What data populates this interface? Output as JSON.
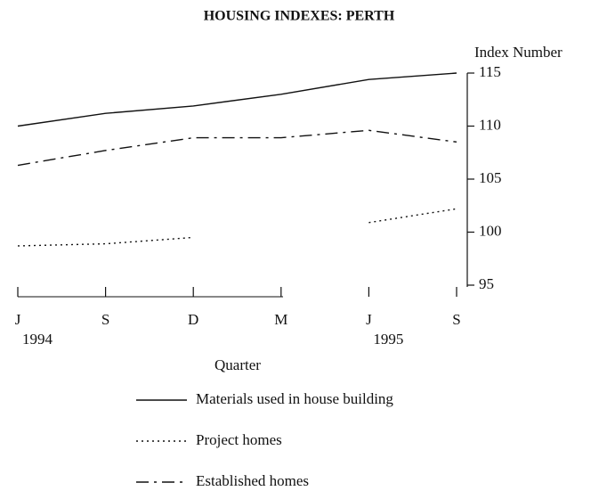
{
  "chart_data": {
    "type": "line",
    "title": "HOUSING INDEXES: PERTH",
    "y_label": "Index Number",
    "x_label": "Quarter",
    "categories": [
      "J",
      "S",
      "D",
      "M",
      "J",
      "S"
    ],
    "year_labels": [
      "1994",
      null,
      null,
      null,
      "1995",
      null
    ],
    "ylim": [
      95,
      115
    ],
    "yticks": [
      95,
      100,
      105,
      110,
      115
    ],
    "series": [
      {
        "name": "Materials used in house building",
        "color": "#111111",
        "dash": "none",
        "values": [
          110,
          111.2,
          111.9,
          113,
          114.4,
          115
        ]
      },
      {
        "name": "Project homes",
        "color": "#111111",
        "dash": "2 4",
        "values": [
          98.7,
          98.9,
          99.5,
          null,
          100.9,
          102.2
        ]
      },
      {
        "name": "Established homes",
        "color": "#111111",
        "dash": "14 6 3 6",
        "values": [
          106.3,
          107.7,
          108.9,
          108.9,
          109.6,
          108.5
        ]
      }
    ]
  }
}
